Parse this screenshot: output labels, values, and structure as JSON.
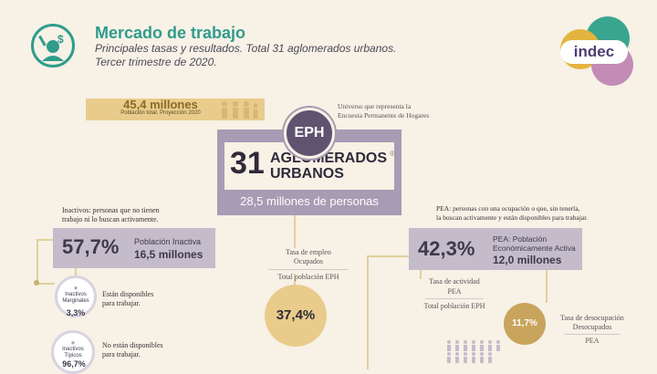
{
  "header": {
    "title": "Mercado de trabajo",
    "subtitle_line1": "Principales tasas y resultados. Total 31 aglomerados urbanos.",
    "subtitle_line2": "Tercer trimestre de 2020.",
    "logo_text": "indec"
  },
  "population": {
    "value": "45,4 millones",
    "caption": "Población total. Proyección 2020"
  },
  "eph": {
    "badge": "EPH",
    "universe_note_line1": "Universo que representa la",
    "universe_note_line2": "Encuesta Permanente de Hogares",
    "number": "31",
    "label_line1": "AGLOMERADOS",
    "label_line2": "URBANOS",
    "persons": "28,5 millones de personas"
  },
  "inactive": {
    "note_line1": "Inactivos: personas que no tienen",
    "note_line2": "trabajo ni lo buscan activamente.",
    "pct": "57,7%",
    "label": "Población Inactiva",
    "value": "16,5 millones",
    "marginal_label_line1": "Inactivos",
    "marginal_label_line2": "Marginales",
    "marginal_pct": "3,3%",
    "marginal_note_line1": "Están disponibles",
    "marginal_note_line2": "para trabajar.",
    "typical_label_line1": "Inactivos",
    "typical_label_line2": "Típicos",
    "typical_pct": "96,7%",
    "typical_note_line1": "No están disponibles",
    "typical_note_line2": "para trabajar."
  },
  "employment": {
    "title": "Tasa de empleo",
    "numerator": "Ocupados",
    "denominator": "Total población EPH",
    "pct": "37,4%"
  },
  "pea": {
    "note_line1": "PEA: personas con una ocupación o que, sin tenerla,",
    "note_line2": "la buscan activamente y están disponibles para trabajar.",
    "pct": "42,3%",
    "label_line1": "PEA: Población",
    "label_line2": "Económicamente Activa",
    "value": "12,0 millones",
    "activity_title": "Tasa de actividad",
    "activity_numerator": "PEA",
    "activity_denominator": "Total población EPH",
    "unemp_pct": "11,7%",
    "unemp_title": "Tasa de desocupación",
    "unemp_numerator": "Desocupados",
    "unemp_denominator": "PEA"
  },
  "colors": {
    "teal": "#2f9c8c",
    "purple": "#a89bb4",
    "gold": "#e9cc8b",
    "dark": "#2e2a3a"
  }
}
